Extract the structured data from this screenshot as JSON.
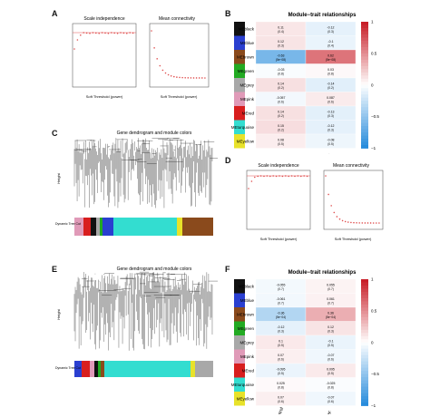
{
  "panels": {
    "A": {
      "label": "A",
      "left_title": "Scale independence",
      "right_title": "Mean connectivity",
      "x_label": "Soft Threshold (power)"
    },
    "B": {
      "label": "B",
      "title": "Module−trait relationships"
    },
    "C": {
      "label": "C",
      "title": "Gene dendrogram and module colors",
      "y_label": "Height",
      "color_row_label": "Dynamic Tree Cut"
    },
    "D": {
      "label": "D",
      "left_title": "Scale independence",
      "right_title": "Mean connectivity",
      "x_label": "Soft Threshold (power)"
    },
    "E": {
      "label": "E",
      "title": "Gene dendrogram and module colors",
      "y_label": "Height",
      "color_row_label": "Dynamic Tree Cut"
    },
    "F": {
      "label": "F",
      "title": "Module−trait relationships"
    }
  },
  "heatmap_b": {
    "rows": [
      "MEblack",
      "MEblue",
      "MEbrown",
      "MEgreen",
      "MEgrey",
      "MEpink",
      "MEred",
      "MEturquoise",
      "MEyellow"
    ],
    "row_colors": [
      "#111111",
      "#2a3fd0",
      "#8a4a1c",
      "#22aa22",
      "#a8a8a8",
      "#e09ab8",
      "#d81e1e",
      "#33ddd0",
      "#e8e22a"
    ],
    "cols": [
      "C1",
      "C2"
    ],
    "values": [
      [
        0.11,
        -0.12
      ],
      [
        0.12,
        -0.1
      ],
      [
        -0.63,
        0.62
      ],
      [
        -0.03,
        0.03
      ],
      [
        0.14,
        -0.14
      ],
      [
        -0.057,
        0.087
      ],
      [
        0.14,
        -0.13
      ],
      [
        0.15,
        -0.12
      ],
      [
        0.08,
        -0.08
      ]
    ],
    "pvals": [
      [
        "(0.4)",
        "(0.3)"
      ],
      [
        "(0.3)",
        "(0.4)"
      ],
      [
        "(5e−08)",
        "(5e−08)"
      ],
      [
        "(0.8)",
        "(0.8)"
      ],
      [
        "(0.2)",
        "(0.2)"
      ],
      [
        "(0.6)",
        "(0.6)"
      ],
      [
        "(0.2)",
        "(0.3)"
      ],
      [
        "(0.2)",
        "(0.3)"
      ],
      [
        "(0.5)",
        "(0.5)"
      ]
    ],
    "scale_ticks": [
      "1",
      "0.5",
      "0",
      "−0.5",
      "−1"
    ]
  },
  "heatmap_f": {
    "rows": [
      "MEblack",
      "MEblue",
      "MEbrown",
      "MEgreen",
      "MEgrey",
      "MEpink",
      "MEred",
      "MEturquoise",
      "MEyellow"
    ],
    "row_colors": [
      "#111111",
      "#2a3fd0",
      "#8a4a1c",
      "#22aa22",
      "#a8a8a8",
      "#e09ab8",
      "#d81e1e",
      "#33ddd0",
      "#e8e22a"
    ],
    "cols": [
      "Control",
      "IPF"
    ],
    "values": [
      [
        -0.055,
        0.055
      ],
      [
        -0.061,
        0.061
      ],
      [
        -0.36,
        0.36
      ],
      [
        -0.12,
        0.12
      ],
      [
        0.1,
        -0.1
      ],
      [
        0.07,
        -0.07
      ],
      [
        -0.095,
        0.095
      ],
      [
        0.025,
        -0.025
      ],
      [
        0.07,
        -0.07
      ]
    ],
    "pvals": [
      [
        "(0.7)",
        "(0.7)"
      ],
      [
        "(0.7)",
        "(0.7)"
      ],
      [
        "(5e−04)",
        "(5e−04)"
      ],
      [
        "(0.3)",
        "(0.3)"
      ],
      [
        "(0.5)",
        "(0.5)"
      ],
      [
        "(0.6)",
        "(0.6)"
      ],
      [
        "(0.5)",
        "(0.5)"
      ],
      [
        "(0.8)",
        "(0.8)"
      ],
      [
        "(0.6)",
        "(0.6)"
      ]
    ],
    "scale_ticks": [
      "1",
      "0.5",
      "0",
      "−0.5",
      "−1"
    ]
  },
  "module_colors_c": [
    "#e09ab8",
    "#d81e1e",
    "#111111",
    "#a8a8a8",
    "#22aa22",
    "#2a3fd0",
    "#33ddd0",
    "#e8e22a",
    "#8a4a1c"
  ],
  "module_colors_e": [
    "#2a3fd0",
    "#d81e1e",
    "#e09ab8",
    "#111111",
    "#22aa22",
    "#8a4a1c",
    "#33ddd0",
    "#e8e22a",
    "#a8a8a8"
  ]
}
